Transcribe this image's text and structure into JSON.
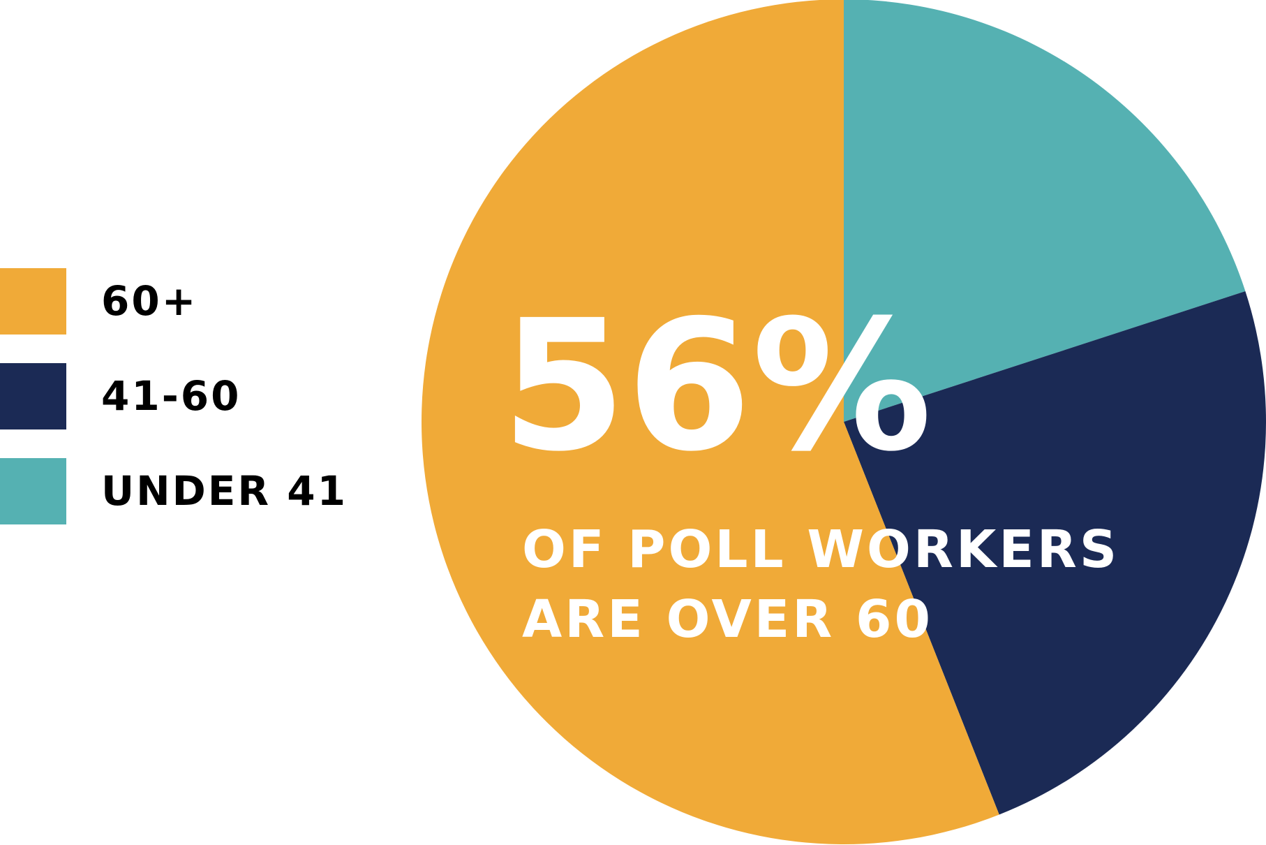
{
  "chart_data": {
    "type": "pie",
    "categories": [
      "60+",
      "41-60",
      "UNDER 41"
    ],
    "values": [
      56,
      24,
      20
    ],
    "unit": "%",
    "colors": [
      "#F0AA38",
      "#1B2A55",
      "#55B1B2"
    ],
    "legend_placement": "left",
    "headline_value": "56%",
    "caption": [
      "OF POLL WORKERS",
      "ARE OVER 60"
    ]
  }
}
